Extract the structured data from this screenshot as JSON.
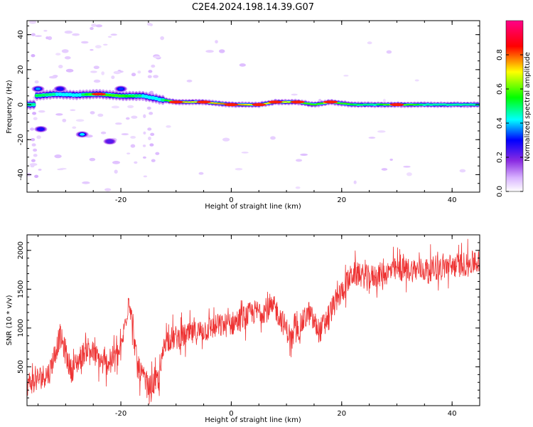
{
  "title": "C2E4.2024.198.14.39.G07",
  "chart_data": [
    {
      "type": "heatmap",
      "xlabel": "Height of straight line (km)",
      "ylabel": "Frequency (Hz)",
      "xlim": [
        -37,
        45
      ],
      "ylim": [
        -50,
        48
      ],
      "xticks": [
        -20,
        0,
        20,
        40
      ],
      "yticks": [
        -40,
        -20,
        0,
        20,
        40
      ],
      "colorbar": {
        "label": "Normalized spectral amplitude",
        "range": [
          0.0,
          1.0
        ],
        "ticks": [
          0.0,
          0.2,
          0.4,
          0.6,
          0.8
        ],
        "colormap": [
          "#ffffff",
          "#d9b3ff",
          "#8a2be2",
          "#0000ff",
          "#00ffff",
          "#00ff00",
          "#ffff00",
          "#ff0000",
          "#ff00aa"
        ]
      },
      "ridge": [
        {
          "x": -35.5,
          "y": 5,
          "amp": 0.6
        },
        {
          "x": -32,
          "y": 6,
          "amp": 0.55
        },
        {
          "x": -28,
          "y": 5.5,
          "amp": 0.5
        },
        {
          "x": -24,
          "y": 6,
          "amp": 0.75
        },
        {
          "x": -20,
          "y": 5,
          "amp": 0.65
        },
        {
          "x": -16,
          "y": 5,
          "amp": 0.55
        },
        {
          "x": -13,
          "y": 3,
          "amp": 0.5
        },
        {
          "x": -10,
          "y": 1.5,
          "amp": 0.8
        },
        {
          "x": -5,
          "y": 1.5,
          "amp": 0.75
        },
        {
          "x": 0,
          "y": 0,
          "amp": 0.85
        },
        {
          "x": 5,
          "y": 0,
          "amp": 0.7
        },
        {
          "x": 8,
          "y": 1.5,
          "amp": 0.8
        },
        {
          "x": 12,
          "y": 1.5,
          "amp": 0.7
        },
        {
          "x": 15,
          "y": 0,
          "amp": 0.65
        },
        {
          "x": 18,
          "y": 1.5,
          "amp": 0.8
        },
        {
          "x": 22,
          "y": 0,
          "amp": 0.6
        },
        {
          "x": 26,
          "y": 0,
          "amp": 0.55
        },
        {
          "x": 30,
          "y": 0,
          "amp": 0.8
        },
        {
          "x": 35,
          "y": 0,
          "amp": 0.55
        },
        {
          "x": 40,
          "y": 0,
          "amp": 0.55
        },
        {
          "x": 45,
          "y": 0,
          "amp": 0.55
        }
      ],
      "blobs": [
        {
          "x": -34.5,
          "y": -14,
          "amp": 0.35
        },
        {
          "x": -27,
          "y": -17,
          "amp": 0.55
        },
        {
          "x": -22,
          "y": -21,
          "amp": 0.3
        },
        {
          "x": -35,
          "y": 9,
          "amp": 0.45
        },
        {
          "x": -20,
          "y": 9,
          "amp": 0.4
        },
        {
          "x": -31,
          "y": 9,
          "amp": 0.35
        }
      ]
    },
    {
      "type": "line",
      "xlabel": "Height of straight line (km)",
      "ylabel": "SNR (10 * v/v)",
      "xlim": [
        -37,
        45
      ],
      "ylim": [
        0,
        2200
      ],
      "xticks": [
        -20,
        0,
        20,
        40
      ],
      "yticks": [
        500,
        1000,
        1500,
        2000
      ],
      "color": "#ee3333",
      "trend": [
        {
          "x": -37,
          "y": 280
        },
        {
          "x": -33,
          "y": 420
        },
        {
          "x": -31,
          "y": 900
        },
        {
          "x": -29,
          "y": 450
        },
        {
          "x": -26,
          "y": 750
        },
        {
          "x": -23,
          "y": 520
        },
        {
          "x": -20,
          "y": 700
        },
        {
          "x": -18.5,
          "y": 1400
        },
        {
          "x": -17,
          "y": 500
        },
        {
          "x": -15,
          "y": 220
        },
        {
          "x": -13,
          "y": 350
        },
        {
          "x": -12,
          "y": 850
        },
        {
          "x": -8,
          "y": 900
        },
        {
          "x": -4,
          "y": 1000
        },
        {
          "x": 0,
          "y": 1050
        },
        {
          "x": 4,
          "y": 1200
        },
        {
          "x": 8,
          "y": 1250
        },
        {
          "x": 11,
          "y": 850
        },
        {
          "x": 14,
          "y": 1200
        },
        {
          "x": 16,
          "y": 950
        },
        {
          "x": 19,
          "y": 1350
        },
        {
          "x": 22,
          "y": 1700
        },
        {
          "x": 25,
          "y": 1650
        },
        {
          "x": 30,
          "y": 1750
        },
        {
          "x": 35,
          "y": 1750
        },
        {
          "x": 40,
          "y": 1800
        },
        {
          "x": 45,
          "y": 1850
        }
      ],
      "noise_amplitude": 160
    }
  ]
}
